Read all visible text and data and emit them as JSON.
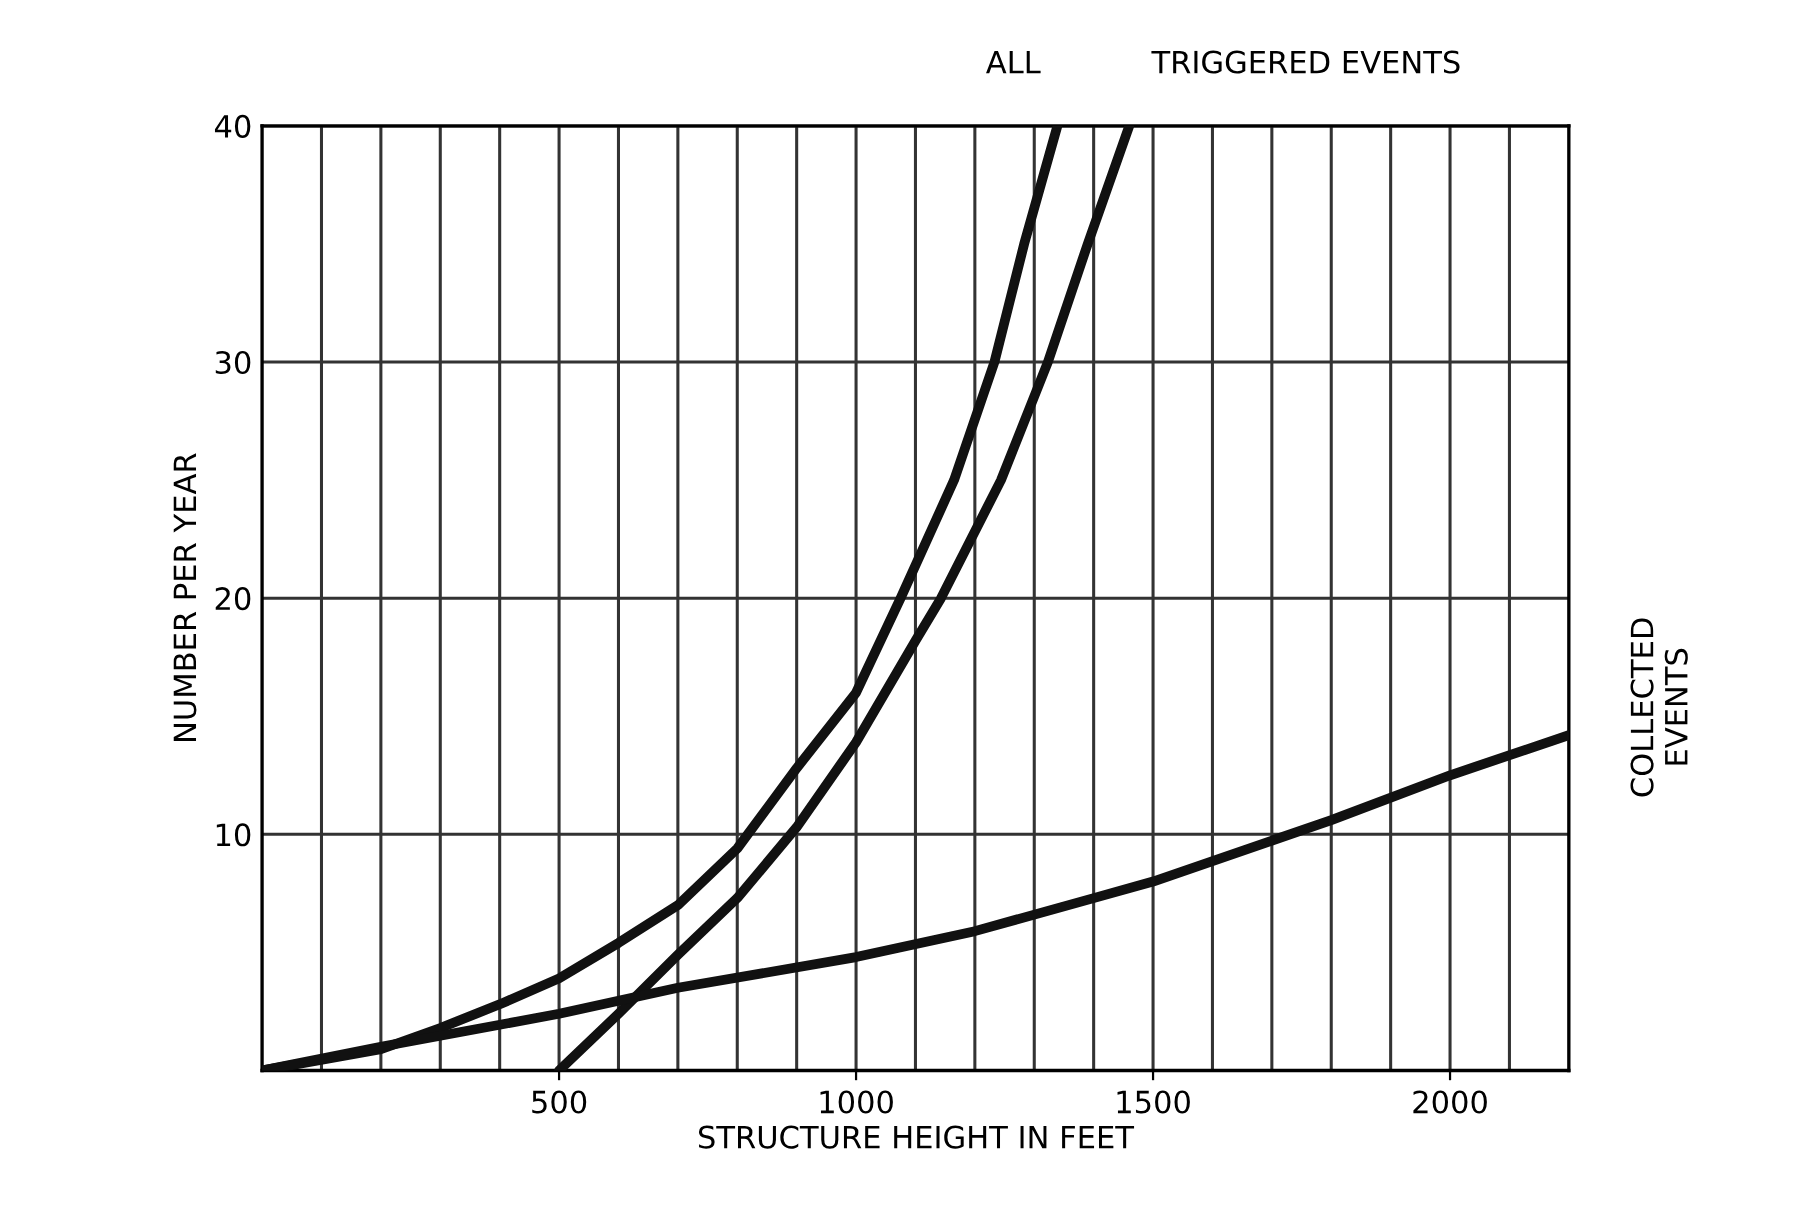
{
  "chart_data": {
    "type": "line",
    "xlabel": "STRUCTURE HEIGHT IN FEET",
    "ylabel": "NUMBER PER YEAR",
    "series": [
      {
        "name": "ALL",
        "color": "#111111",
        "x": [
          0,
          200,
          300,
          400,
          500,
          600,
          700,
          800,
          900,
          1000,
          1075,
          1165,
          1233,
          1283,
          1339
        ],
        "values": [
          0,
          0.9,
          1.8,
          2.8,
          3.9,
          5.4,
          7.0,
          9.4,
          12.8,
          16.0,
          20,
          25,
          30,
          35,
          40
        ]
      },
      {
        "name": "TRIGGERED EVENTS",
        "color": "#111111",
        "x": [
          500,
          600,
          700,
          800,
          900,
          1000,
          1100,
          1143,
          1244,
          1323,
          1390,
          1460
        ],
        "values": [
          0,
          2.4,
          4.9,
          7.3,
          10.3,
          13.9,
          18.2,
          20,
          25,
          30,
          35,
          40
        ]
      },
      {
        "name": "COLLECTED EVENTS",
        "color": "#111111",
        "x": [
          0,
          200,
          500,
          700,
          1000,
          1200,
          1400,
          1500,
          1800,
          2000,
          2200
        ],
        "values": [
          0,
          1.0,
          2.4,
          3.5,
          4.8,
          5.9,
          7.3,
          8.0,
          10.6,
          12.5,
          14.2
        ]
      }
    ],
    "xlim": [
      0,
      2200
    ],
    "xticks": [
      {
        "value": 100,
        "label": null
      },
      {
        "value": 200,
        "label": null
      },
      {
        "value": 300,
        "label": null
      },
      {
        "value": 400,
        "label": null
      },
      500,
      {
        "value": 600,
        "label": null
      },
      {
        "value": 700,
        "label": null
      },
      {
        "value": 800,
        "label": null
      },
      {
        "value": 900,
        "label": null
      },
      1000,
      {
        "value": 1100,
        "label": null
      },
      {
        "value": 1200,
        "label": null
      },
      {
        "value": 1300,
        "label": null
      },
      {
        "value": 1400,
        "label": null
      },
      1500,
      {
        "value": 1600,
        "label": null
      },
      {
        "value": 1700,
        "label": null
      },
      {
        "value": 1800,
        "label": null
      },
      {
        "value": 1900,
        "label": null
      },
      2000,
      {
        "value": 2100,
        "label": null
      }
    ],
    "ylim": [
      0,
      40
    ],
    "yticks": [
      10,
      20,
      30,
      40
    ],
    "grid": true,
    "legend": false,
    "marker": "none",
    "line_style": "solid"
  }
}
